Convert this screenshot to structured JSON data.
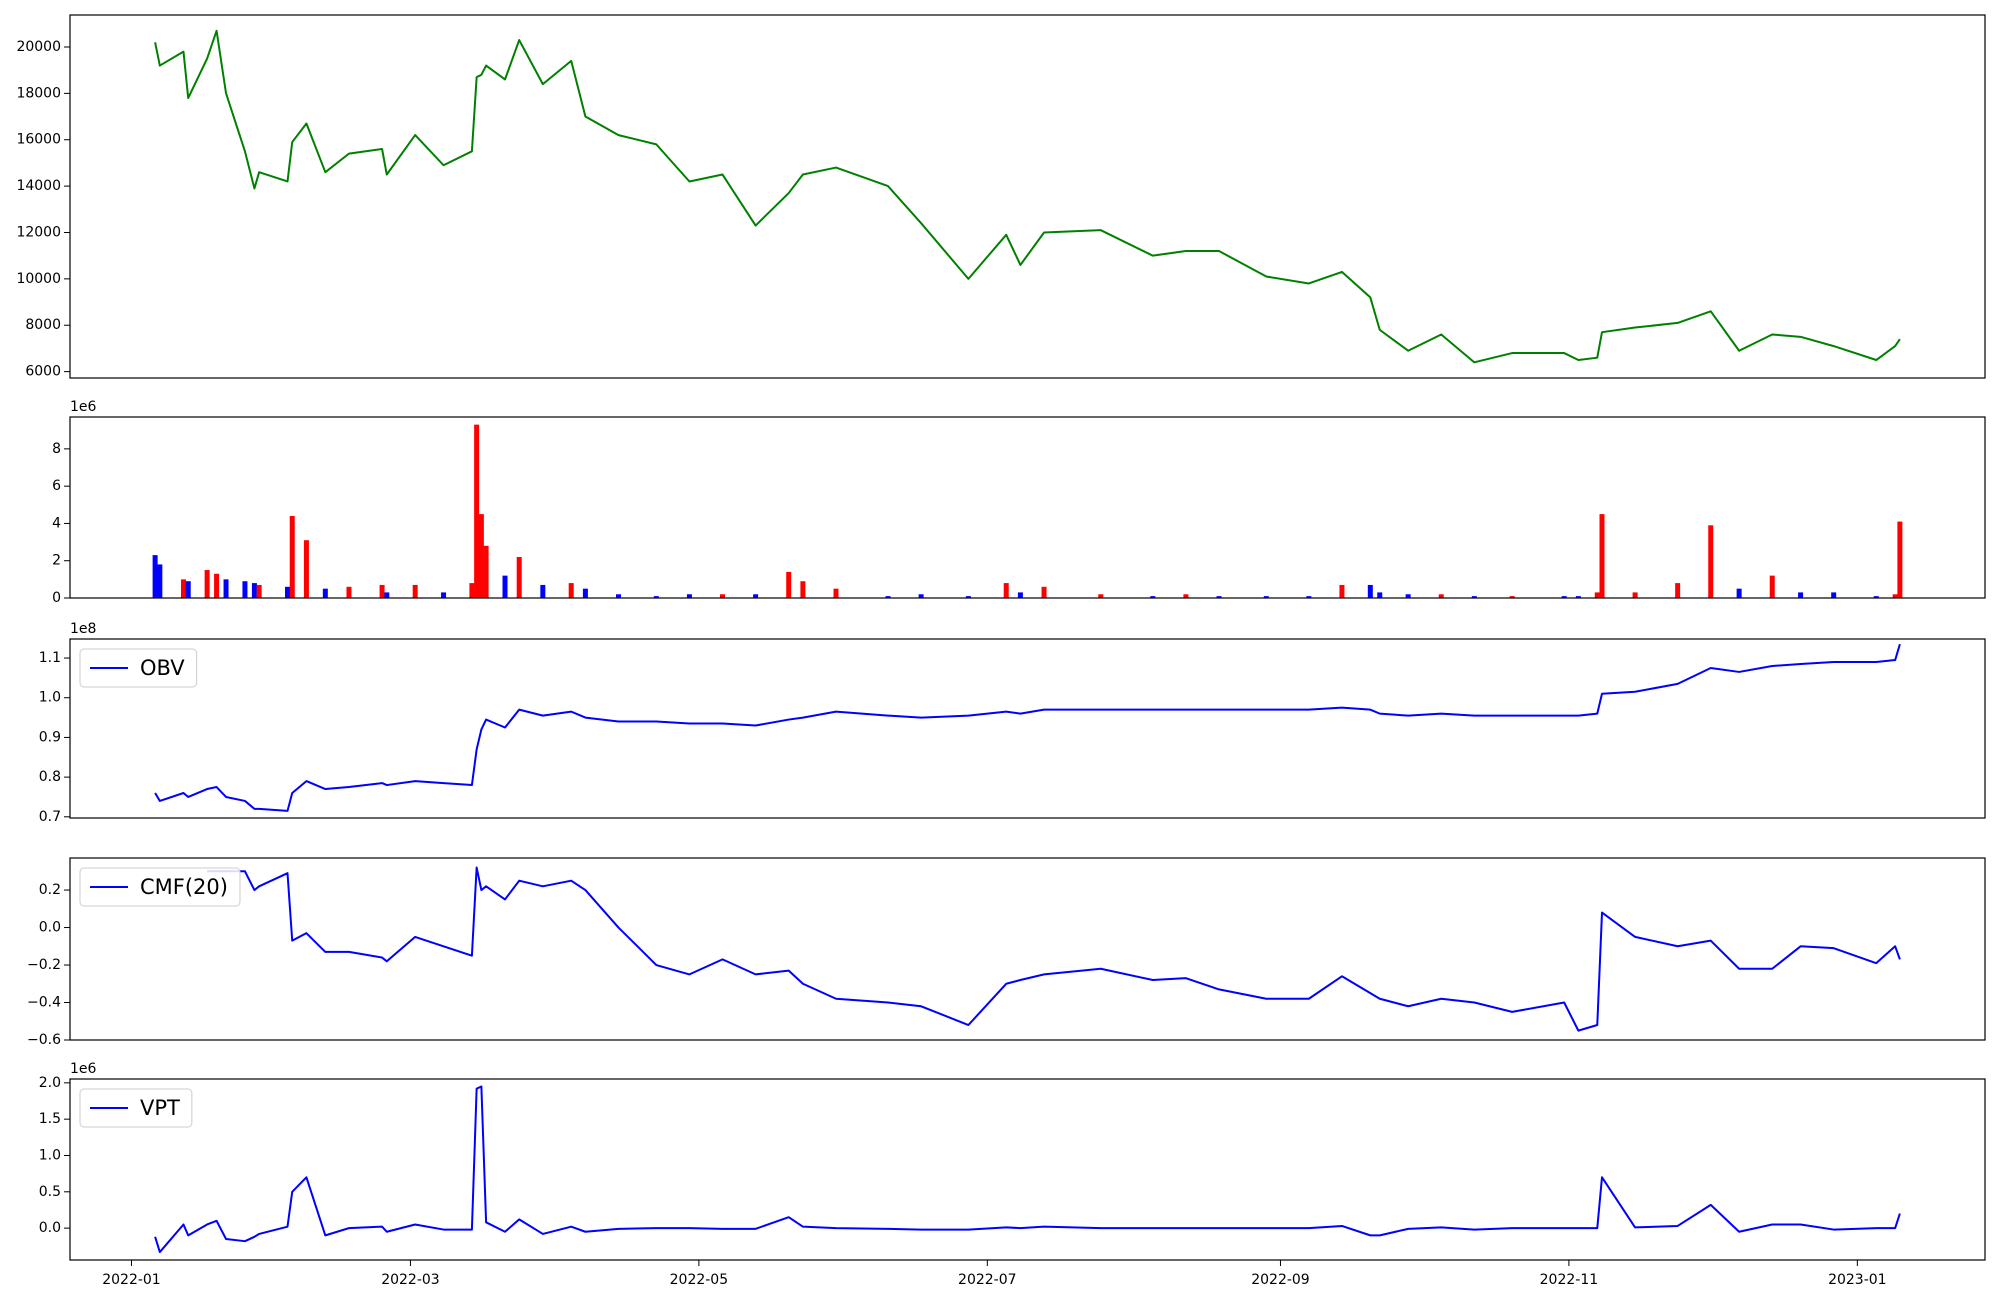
{
  "chart_data": [
    {
      "type": "line",
      "x": [
        "2022-01-06",
        "2022-01-07",
        "2022-01-12",
        "2022-01-13",
        "2022-01-17",
        "2022-01-19",
        "2022-01-21",
        "2022-01-25",
        "2022-01-27",
        "2022-01-28",
        "2022-02-03",
        "2022-02-04",
        "2022-02-07",
        "2022-02-11",
        "2022-02-16",
        "2022-02-23",
        "2022-02-24",
        "2022-03-02",
        "2022-03-08",
        "2022-03-14",
        "2022-03-15",
        "2022-03-16",
        "2022-03-17",
        "2022-03-21",
        "2022-03-24",
        "2022-03-29",
        "2022-04-04",
        "2022-04-07",
        "2022-04-14",
        "2022-04-22",
        "2022-04-29",
        "2022-05-06",
        "2022-05-13",
        "2022-05-20",
        "2022-05-23",
        "2022-05-30",
        "2022-06-10",
        "2022-06-17",
        "2022-06-27",
        "2022-07-05",
        "2022-07-08",
        "2022-07-13",
        "2022-07-25",
        "2022-08-05",
        "2022-08-12",
        "2022-08-19",
        "2022-08-29",
        "2022-09-07",
        "2022-09-14",
        "2022-09-20",
        "2022-09-22",
        "2022-09-28",
        "2022-10-05",
        "2022-10-12",
        "2022-10-20",
        "2022-10-31",
        "2022-11-03",
        "2022-11-07",
        "2022-11-08",
        "2022-11-15",
        "2022-11-24",
        "2022-12-01",
        "2022-12-07",
        "2022-12-14",
        "2022-12-20",
        "2022-12-27",
        "2023-01-05",
        "2023-01-09",
        "2023-01-10"
      ],
      "series": [
        {
          "color": "green",
          "values": [
            20200,
            19200,
            19800,
            17800,
            19500,
            20700,
            18000,
            15500,
            13900,
            14600,
            14200,
            15900,
            16700,
            14600,
            15400,
            15600,
            14500,
            16200,
            14900,
            15500,
            18700,
            18800,
            19200,
            18600,
            20300,
            18400,
            19400,
            17000,
            16200,
            15800,
            14200,
            14500,
            12300,
            13700,
            14500,
            14800,
            14000,
            12400,
            10000,
            11900,
            10600,
            12000,
            12100,
            11000,
            11200,
            11200,
            10100,
            9800,
            10300,
            9200,
            7800,
            6900,
            7600,
            6400,
            6800,
            6800,
            6500,
            6600,
            7700,
            7900,
            8100,
            8600,
            6900,
            7600,
            7500,
            7100,
            6500,
            7100,
            7400
          ]
        }
      ],
      "xlim": [
        "2021-12-19",
        "2023-01-28"
      ],
      "ylim": [
        5724,
        21380
      ],
      "yticks": [
        6000,
        8000,
        10000,
        12000,
        14000,
        16000,
        18000,
        20000
      ]
    },
    {
      "type": "bar",
      "x": [
        "2022-01-06",
        "2022-01-07",
        "2022-01-12",
        "2022-01-13",
        "2022-01-17",
        "2022-01-19",
        "2022-01-21",
        "2022-01-25",
        "2022-01-27",
        "2022-01-28",
        "2022-02-03",
        "2022-02-04",
        "2022-02-07",
        "2022-02-11",
        "2022-02-16",
        "2022-02-23",
        "2022-02-24",
        "2022-03-02",
        "2022-03-08",
        "2022-03-14",
        "2022-03-15",
        "2022-03-16",
        "2022-03-17",
        "2022-03-21",
        "2022-03-24",
        "2022-03-29",
        "2022-04-04",
        "2022-04-07",
        "2022-04-14",
        "2022-04-22",
        "2022-04-29",
        "2022-05-06",
        "2022-05-13",
        "2022-05-20",
        "2022-05-23",
        "2022-05-30",
        "2022-06-10",
        "2022-06-17",
        "2022-06-27",
        "2022-07-05",
        "2022-07-08",
        "2022-07-13",
        "2022-07-25",
        "2022-08-05",
        "2022-08-12",
        "2022-08-19",
        "2022-08-29",
        "2022-09-07",
        "2022-09-14",
        "2022-09-20",
        "2022-09-22",
        "2022-09-28",
        "2022-10-05",
        "2022-10-12",
        "2022-10-20",
        "2022-10-31",
        "2022-11-03",
        "2022-11-07",
        "2022-11-08",
        "2022-11-15",
        "2022-11-24",
        "2022-12-01",
        "2022-12-07",
        "2022-12-14",
        "2022-12-20",
        "2022-12-27",
        "2023-01-05",
        "2023-01-09",
        "2023-01-10"
      ],
      "series": [
        {
          "values": [
            2.3,
            1.8,
            1.0,
            0.9,
            1.5,
            1.3,
            1.0,
            0.9,
            0.8,
            0.7,
            0.6,
            4.4,
            3.1,
            0.5,
            0.6,
            0.7,
            0.3,
            0.7,
            0.3,
            0.8,
            9.3,
            4.5,
            2.8,
            1.2,
            2.2,
            0.7,
            0.8,
            0.5,
            0.2,
            0.1,
            0.2,
            0.2,
            0.2,
            1.4,
            0.9,
            0.5,
            0.1,
            0.2,
            0.1,
            0.8,
            0.3,
            0.6,
            0.2,
            0.1,
            0.2,
            0.1,
            0.1,
            0.1,
            0.7,
            0.7,
            0.3,
            0.2,
            0.2,
            0.1,
            0.1,
            0.1,
            0.1,
            0.3,
            4.5,
            0.3,
            0.8,
            3.9,
            0.5,
            1.2,
            0.3,
            0.3,
            0.1,
            0.2,
            4.1
          ],
          "colors": [
            "blue",
            "blue",
            "red",
            "blue",
            "red",
            "red",
            "blue",
            "blue",
            "blue",
            "red",
            "blue",
            "red",
            "red",
            "blue",
            "red",
            "red",
            "blue",
            "red",
            "blue",
            "red",
            "red",
            "red",
            "red",
            "blue",
            "red",
            "blue",
            "red",
            "blue",
            "blue",
            "blue",
            "blue",
            "red",
            "blue",
            "red",
            "red",
            "red",
            "blue",
            "blue",
            "blue",
            "red",
            "blue",
            "red",
            "red",
            "blue",
            "red",
            "blue",
            "blue",
            "blue",
            "red",
            "blue",
            "blue",
            "blue",
            "red",
            "blue",
            "red",
            "blue",
            "blue",
            "red",
            "red",
            "red",
            "red",
            "red",
            "blue",
            "red",
            "blue",
            "blue",
            "blue",
            "red",
            "red"
          ]
        }
      ],
      "offset_label": "1e6",
      "xlim": [
        "2021-12-19",
        "2023-01-28"
      ],
      "ylim": [
        0,
        9.71
      ],
      "yticks": [
        0,
        2,
        4,
        6,
        8
      ]
    },
    {
      "type": "line",
      "x": [
        "2022-01-06",
        "2022-01-07",
        "2022-01-12",
        "2022-01-13",
        "2022-01-17",
        "2022-01-19",
        "2022-01-21",
        "2022-01-25",
        "2022-01-27",
        "2022-01-28",
        "2022-02-03",
        "2022-02-04",
        "2022-02-07",
        "2022-02-11",
        "2022-02-16",
        "2022-02-23",
        "2022-02-24",
        "2022-03-02",
        "2022-03-08",
        "2022-03-14",
        "2022-03-15",
        "2022-03-16",
        "2022-03-17",
        "2022-03-21",
        "2022-03-24",
        "2022-03-29",
        "2022-04-04",
        "2022-04-07",
        "2022-04-14",
        "2022-04-22",
        "2022-04-29",
        "2022-05-06",
        "2022-05-13",
        "2022-05-20",
        "2022-05-23",
        "2022-05-30",
        "2022-06-10",
        "2022-06-17",
        "2022-06-27",
        "2022-07-05",
        "2022-07-08",
        "2022-07-13",
        "2022-07-25",
        "2022-08-05",
        "2022-08-12",
        "2022-08-19",
        "2022-08-29",
        "2022-09-07",
        "2022-09-14",
        "2022-09-20",
        "2022-09-22",
        "2022-09-28",
        "2022-10-05",
        "2022-10-12",
        "2022-10-20",
        "2022-10-31",
        "2022-11-03",
        "2022-11-07",
        "2022-11-08",
        "2022-11-15",
        "2022-11-24",
        "2022-12-01",
        "2022-12-07",
        "2022-12-14",
        "2022-12-20",
        "2022-12-27",
        "2023-01-05",
        "2023-01-09",
        "2023-01-10"
      ],
      "series": [
        {
          "name": "OBV",
          "color": "blue",
          "values": [
            0.76,
            0.74,
            0.76,
            0.75,
            0.77,
            0.775,
            0.75,
            0.74,
            0.72,
            0.72,
            0.715,
            0.76,
            0.79,
            0.77,
            0.775,
            0.785,
            0.78,
            0.79,
            0.785,
            0.78,
            0.87,
            0.92,
            0.945,
            0.925,
            0.97,
            0.955,
            0.965,
            0.95,
            0.94,
            0.94,
            0.935,
            0.935,
            0.93,
            0.945,
            0.95,
            0.965,
            0.955,
            0.95,
            0.955,
            0.965,
            0.96,
            0.97,
            0.97,
            0.97,
            0.97,
            0.97,
            0.97,
            0.97,
            0.975,
            0.97,
            0.96,
            0.955,
            0.96,
            0.955,
            0.955,
            0.955,
            0.955,
            0.96,
            1.01,
            1.015,
            1.035,
            1.075,
            1.065,
            1.08,
            1.085,
            1.09,
            1.09,
            1.095,
            1.135
          ]
        }
      ],
      "offset_label": "1e8",
      "legend": "upper left",
      "xlim": [
        "2021-12-19",
        "2023-01-28"
      ],
      "ylim": [
        0.697,
        1.148
      ],
      "yticks": [
        0.7,
        0.8,
        0.9,
        {
          "value": 1,
          "label": "1.0"
        },
        1.1
      ]
    },
    {
      "type": "line",
      "x": [
        "2022-01-06",
        "2022-01-07",
        "2022-01-12",
        "2022-01-13",
        "2022-01-17",
        "2022-01-19",
        "2022-01-21",
        "2022-01-25",
        "2022-01-27",
        "2022-01-28",
        "2022-02-03",
        "2022-02-04",
        "2022-02-07",
        "2022-02-11",
        "2022-02-16",
        "2022-02-23",
        "2022-02-24",
        "2022-03-02",
        "2022-03-08",
        "2022-03-14",
        "2022-03-15",
        "2022-03-16",
        "2022-03-17",
        "2022-03-21",
        "2022-03-24",
        "2022-03-29",
        "2022-04-04",
        "2022-04-07",
        "2022-04-14",
        "2022-04-22",
        "2022-04-29",
        "2022-05-06",
        "2022-05-13",
        "2022-05-20",
        "2022-05-23",
        "2022-05-30",
        "2022-06-10",
        "2022-06-17",
        "2022-06-27",
        "2022-07-05",
        "2022-07-08",
        "2022-07-13",
        "2022-07-25",
        "2022-08-05",
        "2022-08-12",
        "2022-08-19",
        "2022-08-29",
        "2022-09-07",
        "2022-09-14",
        "2022-09-20",
        "2022-09-22",
        "2022-09-28",
        "2022-10-05",
        "2022-10-12",
        "2022-10-20",
        "2022-10-31",
        "2022-11-03",
        "2022-11-07",
        "2022-11-08",
        "2022-11-15",
        "2022-11-24",
        "2022-12-01",
        "2022-12-07",
        "2022-12-14",
        "2022-12-20",
        "2022-12-27",
        "2023-01-05",
        "2023-01-09",
        "2023-01-10"
      ],
      "series": [
        {
          "name": "CMF(20)",
          "color": "blue",
          "values": [
            null,
            null,
            null,
            null,
            0.3,
            0.3,
            0.3,
            0.3,
            0.2,
            0.22,
            0.29,
            -0.07,
            -0.03,
            -0.13,
            -0.13,
            -0.16,
            -0.18,
            -0.05,
            -0.1,
            -0.15,
            0.32,
            0.2,
            0.22,
            0.15,
            0.25,
            0.22,
            0.25,
            0.2,
            0.0,
            -0.2,
            -0.25,
            -0.17,
            -0.25,
            -0.23,
            -0.3,
            -0.38,
            -0.4,
            -0.42,
            -0.52,
            -0.3,
            -0.28,
            -0.25,
            -0.22,
            -0.28,
            -0.27,
            -0.33,
            -0.38,
            -0.38,
            -0.26,
            -0.35,
            -0.38,
            -0.42,
            -0.38,
            -0.4,
            -0.45,
            -0.4,
            -0.55,
            -0.52,
            0.08,
            -0.05,
            -0.1,
            -0.07,
            -0.22,
            -0.22,
            -0.1,
            -0.11,
            -0.19,
            -0.1,
            -0.17
          ]
        }
      ],
      "legend": "upper left",
      "xlim": [
        "2021-12-19",
        "2023-01-28"
      ],
      "ylim": [
        -0.6,
        0.371
      ],
      "yticks": [
        {
          "value": -0.6,
          "label": "−0.6"
        },
        {
          "value": -0.4,
          "label": "−0.4"
        },
        {
          "value": -0.2,
          "label": "−0.2"
        },
        {
          "value": 0,
          "label": "0.0"
        },
        0.2
      ]
    },
    {
      "type": "line",
      "x": [
        "2022-01-06",
        "2022-01-07",
        "2022-01-12",
        "2022-01-13",
        "2022-01-17",
        "2022-01-19",
        "2022-01-21",
        "2022-01-25",
        "2022-01-27",
        "2022-01-28",
        "2022-02-03",
        "2022-02-04",
        "2022-02-07",
        "2022-02-11",
        "2022-02-16",
        "2022-02-23",
        "2022-02-24",
        "2022-03-02",
        "2022-03-08",
        "2022-03-14",
        "2022-03-15",
        "2022-03-16",
        "2022-03-17",
        "2022-03-21",
        "2022-03-24",
        "2022-03-29",
        "2022-04-04",
        "2022-04-07",
        "2022-04-14",
        "2022-04-22",
        "2022-04-29",
        "2022-05-06",
        "2022-05-13",
        "2022-05-20",
        "2022-05-23",
        "2022-05-30",
        "2022-06-10",
        "2022-06-17",
        "2022-06-27",
        "2022-07-05",
        "2022-07-08",
        "2022-07-13",
        "2022-07-25",
        "2022-08-05",
        "2022-08-12",
        "2022-08-19",
        "2022-08-29",
        "2022-09-07",
        "2022-09-14",
        "2022-09-20",
        "2022-09-22",
        "2022-09-28",
        "2022-10-05",
        "2022-10-12",
        "2022-10-20",
        "2022-10-31",
        "2022-11-03",
        "2022-11-07",
        "2022-11-08",
        "2022-11-15",
        "2022-11-24",
        "2022-12-01",
        "2022-12-07",
        "2022-12-14",
        "2022-12-20",
        "2022-12-27",
        "2023-01-05",
        "2023-01-09",
        "2023-01-10"
      ],
      "series": [
        {
          "name": "VPT",
          "color": "blue",
          "values": [
            -0.12,
            -0.33,
            0.05,
            -0.1,
            0.05,
            0.1,
            -0.15,
            -0.18,
            -0.12,
            -0.08,
            0.02,
            0.5,
            0.7,
            -0.1,
            0.0,
            0.02,
            -0.05,
            0.05,
            -0.02,
            -0.02,
            1.92,
            1.95,
            0.08,
            -0.05,
            0.12,
            -0.08,
            0.02,
            -0.05,
            -0.01,
            0.0,
            0.0,
            -0.01,
            -0.01,
            0.15,
            0.02,
            0.0,
            -0.01,
            -0.02,
            -0.02,
            0.01,
            0.0,
            0.02,
            0.0,
            0.0,
            0.0,
            0.0,
            0.0,
            0.0,
            0.03,
            -0.1,
            -0.1,
            -0.01,
            0.01,
            -0.02,
            0.0,
            0.0,
            0.0,
            0.0,
            0.7,
            0.01,
            0.03,
            0.32,
            -0.05,
            0.05,
            0.05,
            -0.02,
            0.0,
            0.0,
            0.2
          ]
        }
      ],
      "offset_label": "1e6",
      "legend": "upper left",
      "xlim": [
        "2021-12-19",
        "2023-01-28"
      ],
      "ylim": [
        -0.439,
        2.053
      ],
      "yticks": [
        {
          "value": 0,
          "label": "0.0"
        },
        0.5,
        {
          "value": 1,
          "label": "1.0"
        },
        1.5,
        {
          "value": 2,
          "label": "2.0"
        }
      ],
      "xticks": [
        {
          "value": "2022-01-01",
          "label": "2022-01"
        },
        {
          "value": "2022-03-01",
          "label": "2022-03"
        },
        {
          "value": "2022-05-01",
          "label": "2022-05"
        },
        {
          "value": "2022-07-01",
          "label": "2022-07"
        },
        {
          "value": "2022-09-01",
          "label": "2022-09"
        },
        {
          "value": "2022-11-01",
          "label": "2022-11"
        },
        {
          "value": "2023-01-01",
          "label": "2023-01"
        }
      ]
    }
  ]
}
